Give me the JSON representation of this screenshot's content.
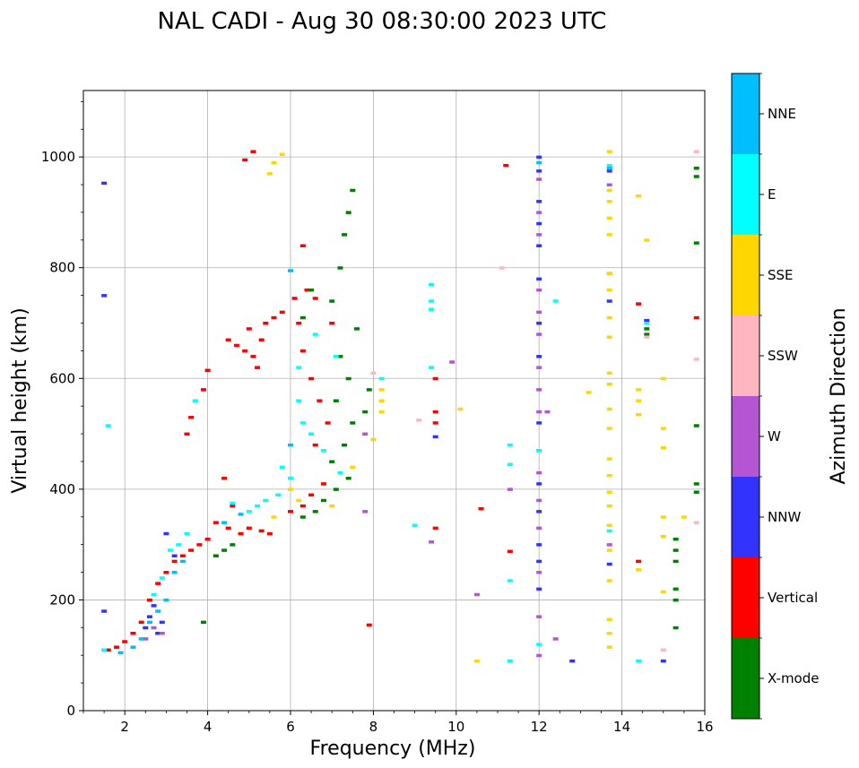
{
  "chart_data": {
    "type": "scatter",
    "title": "NAL CADI - Aug 30 08:30:00 2023 UTC",
    "xlabel": "Frequency (MHz)",
    "ylabel": "Virtual height (km)",
    "xlim": [
      1,
      16
    ],
    "ylim": [
      0,
      1120
    ],
    "xticks": [
      "2",
      "4",
      "6",
      "8",
      "10",
      "12",
      "14",
      "16"
    ],
    "xtick_values": [
      2,
      4,
      6,
      8,
      10,
      12,
      14,
      16
    ],
    "yticks": [
      "0",
      "200",
      "400",
      "600",
      "800",
      "1000"
    ],
    "ytick_values": [
      0,
      200,
      400,
      600,
      800,
      1000
    ],
    "grid": true,
    "colorbar": {
      "label": "Azimuth Direction",
      "categories": [
        {
          "name": "X-mode",
          "color": "#008000"
        },
        {
          "name": "Vertical",
          "color": "#ff0000"
        },
        {
          "name": "NNW",
          "color": "#3333ff"
        },
        {
          "name": "W",
          "color": "#b455d4"
        },
        {
          "name": "SSW",
          "color": "#ffb6c1"
        },
        {
          "name": "SSE",
          "color": "#ffd700"
        },
        {
          "name": "E",
          "color": "#00ffff"
        },
        {
          "name": "NNE",
          "color": "#00bfff"
        }
      ]
    },
    "series": [
      {
        "name": "Vertical",
        "points": [
          [
            4.2,
            340
          ],
          [
            4.5,
            330
          ],
          [
            4.8,
            320
          ],
          [
            5.0,
            330
          ],
          [
            5.3,
            325
          ],
          [
            5.5,
            320
          ],
          [
            4.0,
            310
          ],
          [
            3.8,
            300
          ],
          [
            3.6,
            290
          ],
          [
            3.4,
            280
          ],
          [
            3.2,
            270
          ],
          [
            3.0,
            250
          ],
          [
            2.8,
            230
          ],
          [
            2.6,
            200
          ],
          [
            2.4,
            160
          ],
          [
            2.2,
            140
          ],
          [
            2.0,
            125
          ],
          [
            1.8,
            115
          ],
          [
            1.6,
            110
          ],
          [
            6.0,
            360
          ],
          [
            6.3,
            370
          ],
          [
            6.5,
            390
          ],
          [
            6.8,
            410
          ],
          [
            6.6,
            480
          ],
          [
            6.9,
            520
          ],
          [
            6.7,
            560
          ],
          [
            6.5,
            600
          ],
          [
            6.3,
            650
          ],
          [
            6.2,
            700
          ],
          [
            6.4,
            760
          ],
          [
            6.3,
            840
          ],
          [
            4.7,
            660
          ],
          [
            4.9,
            650
          ],
          [
            5.1,
            640
          ],
          [
            5.3,
            670
          ],
          [
            4.5,
            670
          ],
          [
            5.0,
            690
          ],
          [
            5.2,
            620
          ],
          [
            5.4,
            700
          ],
          [
            5.6,
            710
          ],
          [
            5.8,
            720
          ],
          [
            6.1,
            745
          ],
          [
            6.6,
            745
          ],
          [
            7.0,
            700
          ],
          [
            5.1,
            1010
          ],
          [
            4.9,
            995
          ],
          [
            3.5,
            500
          ],
          [
            3.9,
            580
          ],
          [
            4.0,
            615
          ],
          [
            4.4,
            420
          ],
          [
            9.5,
            540
          ],
          [
            9.5,
            520
          ],
          [
            9.5,
            600
          ],
          [
            9.5,
            330
          ],
          [
            10.6,
            365
          ],
          [
            11.2,
            985
          ],
          [
            11.3,
            288
          ],
          [
            14.4,
            735
          ],
          [
            14.4,
            270
          ],
          [
            15.8,
            710
          ],
          [
            7.9,
            155
          ],
          [
            4.6,
            370
          ],
          [
            3.6,
            530
          ]
        ]
      },
      {
        "name": "X-mode",
        "points": [
          [
            4.2,
            280
          ],
          [
            4.4,
            290
          ],
          [
            4.6,
            300
          ],
          [
            6.3,
            350
          ],
          [
            6.6,
            360
          ],
          [
            6.8,
            380
          ],
          [
            7.1,
            400
          ],
          [
            7.4,
            420
          ],
          [
            7.0,
            450
          ],
          [
            7.3,
            480
          ],
          [
            7.5,
            520
          ],
          [
            7.1,
            560
          ],
          [
            7.4,
            600
          ],
          [
            7.2,
            640
          ],
          [
            7.6,
            690
          ],
          [
            7.0,
            740
          ],
          [
            6.5,
            760
          ],
          [
            7.2,
            800
          ],
          [
            7.3,
            860
          ],
          [
            7.4,
            900
          ],
          [
            7.5,
            940
          ],
          [
            6.3,
            710
          ],
          [
            7.8,
            540
          ],
          [
            7.9,
            580
          ],
          [
            3.9,
            160
          ],
          [
            15.3,
            310
          ],
          [
            15.3,
            290
          ],
          [
            15.3,
            270
          ],
          [
            15.3,
            220
          ],
          [
            15.3,
            200
          ],
          [
            15.3,
            150
          ],
          [
            15.8,
            410
          ],
          [
            15.8,
            395
          ],
          [
            15.8,
            515
          ],
          [
            15.8,
            845
          ],
          [
            15.8,
            965
          ],
          [
            15.8,
            980
          ],
          [
            14.6,
            690
          ],
          [
            14.6,
            680
          ]
        ]
      },
      {
        "name": "NNW",
        "points": [
          [
            3.0,
            320
          ],
          [
            3.2,
            280
          ],
          [
            2.7,
            190
          ],
          [
            2.6,
            170
          ],
          [
            2.5,
            150
          ],
          [
            2.9,
            160
          ],
          [
            2.8,
            140
          ],
          [
            1.5,
            180
          ],
          [
            1.5,
            750
          ],
          [
            1.5,
            953
          ],
          [
            12.0,
            1000
          ],
          [
            12.0,
            975
          ],
          [
            12.0,
            920
          ],
          [
            12.0,
            880
          ],
          [
            12.0,
            840
          ],
          [
            12.0,
            780
          ],
          [
            12.0,
            700
          ],
          [
            12.0,
            640
          ],
          [
            12.0,
            520
          ],
          [
            12.0,
            410
          ],
          [
            12.0,
            360
          ],
          [
            12.0,
            300
          ],
          [
            12.0,
            270
          ],
          [
            12.0,
            220
          ],
          [
            13.7,
            975
          ],
          [
            13.7,
            740
          ],
          [
            13.7,
            265
          ],
          [
            15.0,
            90
          ],
          [
            12.8,
            90
          ],
          [
            14.6,
            705
          ],
          [
            9.5,
            495
          ]
        ]
      },
      {
        "name": "W",
        "points": [
          [
            2.7,
            150
          ],
          [
            2.9,
            140
          ],
          [
            2.5,
            130
          ],
          [
            12.0,
            960
          ],
          [
            12.0,
            900
          ],
          [
            12.0,
            860
          ],
          [
            12.0,
            760
          ],
          [
            12.0,
            720
          ],
          [
            12.0,
            680
          ],
          [
            12.0,
            620
          ],
          [
            12.0,
            580
          ],
          [
            12.0,
            540
          ],
          [
            12.0,
            470
          ],
          [
            12.0,
            430
          ],
          [
            12.0,
            380
          ],
          [
            12.0,
            330
          ],
          [
            12.0,
            250
          ],
          [
            12.0,
            170
          ],
          [
            12.0,
            100
          ],
          [
            12.2,
            540
          ],
          [
            12.4,
            130
          ],
          [
            13.7,
            950
          ],
          [
            13.7,
            790
          ],
          [
            13.7,
            300
          ],
          [
            9.9,
            630
          ],
          [
            10.5,
            210
          ],
          [
            9.4,
            305
          ],
          [
            7.8,
            500
          ],
          [
            7.8,
            360
          ],
          [
            11.3,
            400
          ]
        ]
      },
      {
        "name": "SSW",
        "points": [
          [
            11.1,
            800
          ],
          [
            15.0,
            110
          ],
          [
            15.8,
            1010
          ],
          [
            15.8,
            635
          ],
          [
            15.8,
            340
          ],
          [
            9.1,
            525
          ],
          [
            14.6,
            675
          ],
          [
            8.0,
            610
          ]
        ]
      },
      {
        "name": "SSE",
        "points": [
          [
            5.6,
            990
          ],
          [
            5.5,
            970
          ],
          [
            5.8,
            1005
          ],
          [
            6.0,
            400
          ],
          [
            5.6,
            350
          ],
          [
            6.2,
            380
          ],
          [
            7.0,
            370
          ],
          [
            7.5,
            440
          ],
          [
            8.0,
            490
          ],
          [
            8.2,
            540
          ],
          [
            8.2,
            560
          ],
          [
            8.2,
            580
          ],
          [
            10.1,
            545
          ],
          [
            10.5,
            90
          ],
          [
            13.2,
            575
          ],
          [
            13.7,
            1010
          ],
          [
            13.7,
            940
          ],
          [
            13.7,
            920
          ],
          [
            13.7,
            890
          ],
          [
            13.7,
            860
          ],
          [
            13.7,
            790
          ],
          [
            13.7,
            760
          ],
          [
            13.7,
            710
          ],
          [
            13.7,
            675
          ],
          [
            13.7,
            610
          ],
          [
            13.7,
            590
          ],
          [
            13.7,
            545
          ],
          [
            13.7,
            510
          ],
          [
            13.7,
            455
          ],
          [
            13.7,
            425
          ],
          [
            13.7,
            395
          ],
          [
            13.7,
            370
          ],
          [
            13.7,
            335
          ],
          [
            13.7,
            290
          ],
          [
            13.7,
            235
          ],
          [
            13.7,
            165
          ],
          [
            13.7,
            140
          ],
          [
            13.7,
            115
          ],
          [
            14.4,
            930
          ],
          [
            14.4,
            580
          ],
          [
            14.4,
            560
          ],
          [
            14.4,
            535
          ],
          [
            14.4,
            255
          ],
          [
            14.6,
            850
          ],
          [
            15.0,
            600
          ],
          [
            15.0,
            510
          ],
          [
            15.0,
            475
          ],
          [
            15.0,
            350
          ],
          [
            15.0,
            315
          ],
          [
            15.0,
            215
          ],
          [
            15.5,
            350
          ]
        ]
      },
      {
        "name": "E",
        "points": [
          [
            5.0,
            360
          ],
          [
            5.2,
            370
          ],
          [
            5.4,
            380
          ],
          [
            5.7,
            390
          ],
          [
            4.6,
            375
          ],
          [
            6.3,
            520
          ],
          [
            6.2,
            560
          ],
          [
            6.2,
            620
          ],
          [
            6.6,
            680
          ],
          [
            7.1,
            640
          ],
          [
            6.5,
            500
          ],
          [
            6.8,
            470
          ],
          [
            7.2,
            430
          ],
          [
            6.0,
            420
          ],
          [
            5.8,
            440
          ],
          [
            3.5,
            320
          ],
          [
            3.3,
            300
          ],
          [
            3.1,
            290
          ],
          [
            2.9,
            240
          ],
          [
            2.7,
            210
          ],
          [
            3.7,
            560
          ],
          [
            1.5,
            110
          ],
          [
            1.6,
            515
          ],
          [
            9.0,
            335
          ],
          [
            9.4,
            770
          ],
          [
            9.4,
            740
          ],
          [
            9.4,
            725
          ],
          [
            9.4,
            620
          ],
          [
            11.3,
            480
          ],
          [
            11.3,
            445
          ],
          [
            11.3,
            235
          ],
          [
            11.3,
            90
          ],
          [
            12.0,
            470
          ],
          [
            12.0,
            120
          ],
          [
            12.4,
            740
          ],
          [
            13.7,
            985
          ],
          [
            13.7,
            325
          ],
          [
            14.4,
            90
          ],
          [
            14.6,
            700
          ],
          [
            8.2,
            600
          ]
        ]
      },
      {
        "name": "NNE",
        "points": [
          [
            3.0,
            200
          ],
          [
            2.8,
            180
          ],
          [
            2.6,
            160
          ],
          [
            3.2,
            250
          ],
          [
            3.4,
            270
          ],
          [
            2.4,
            130
          ],
          [
            2.2,
            115
          ],
          [
            1.9,
            105
          ],
          [
            6.0,
            795
          ],
          [
            13.7,
            980
          ],
          [
            12.0,
            990
          ],
          [
            4.4,
            340
          ],
          [
            4.8,
            355
          ],
          [
            6.0,
            480
          ]
        ]
      }
    ]
  }
}
